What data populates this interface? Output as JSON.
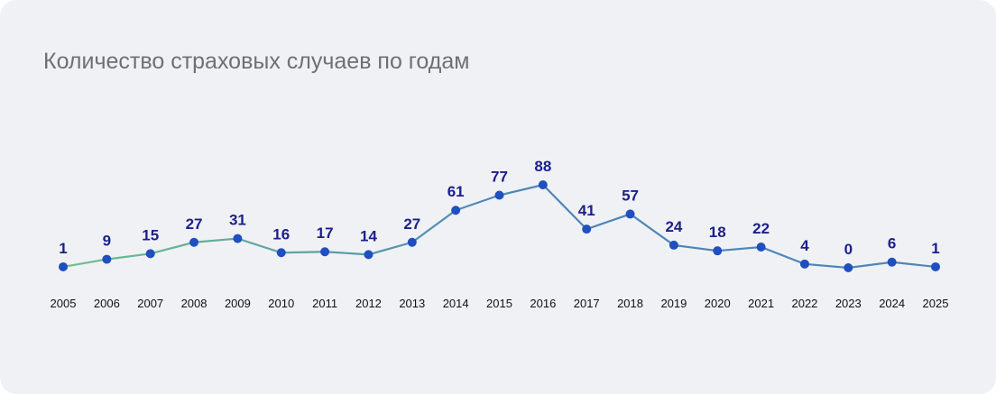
{
  "chart_data": {
    "type": "line",
    "title": "Количество страховых случаев по годам",
    "categories": [
      "2005",
      "2006",
      "2007",
      "2008",
      "2009",
      "2010",
      "2011",
      "2012",
      "2013",
      "2014",
      "2015",
      "2016",
      "2017",
      "2018",
      "2019",
      "2020",
      "2021",
      "2022",
      "2023",
      "2024",
      "2025"
    ],
    "values": [
      1,
      9,
      15,
      27,
      31,
      16,
      17,
      14,
      27,
      61,
      77,
      88,
      41,
      57,
      24,
      18,
      22,
      4,
      0,
      6,
      1
    ],
    "xlabel": "",
    "ylabel": "",
    "ylim": [
      -5,
      95
    ],
    "grid": false,
    "colors": {
      "line_start": "#6cc28a",
      "line_end": "#4f86b8",
      "point": "#1f4fc0",
      "label": "#1c1f8a"
    }
  }
}
